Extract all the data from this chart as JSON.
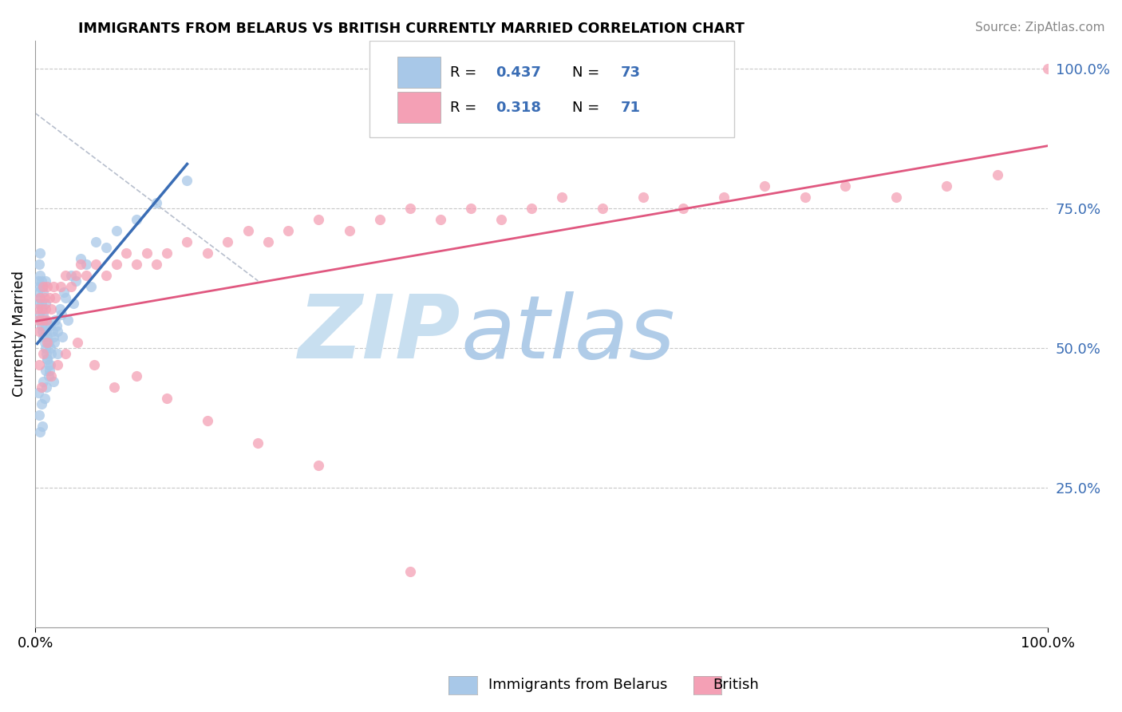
{
  "title": "IMMIGRANTS FROM BELARUS VS BRITISH CURRENTLY MARRIED CORRELATION CHART",
  "source": "Source: ZipAtlas.com",
  "ylabel": "Currently Married",
  "color_blue": "#a8c8e8",
  "color_pink": "#f4a0b5",
  "color_blue_line": "#3a6db5",
  "color_pink_line": "#e05880",
  "color_blue_dark": "#2171b5",
  "watermark_zip": "ZIP",
  "watermark_atlas": "atlas",
  "watermark_color_zip": "#c8dff0",
  "watermark_color_atlas": "#b0cce8",
  "grid_color": "#c8c8c8",
  "background_color": "#ffffff",
  "legend_box_color": "#e8e8e8",
  "R1": "0.437",
  "N1": "73",
  "R2": "0.318",
  "N2": "71",
  "blue_x": [
    0.002,
    0.003,
    0.003,
    0.004,
    0.004,
    0.004,
    0.005,
    0.005,
    0.005,
    0.005,
    0.006,
    0.006,
    0.006,
    0.007,
    0.007,
    0.007,
    0.008,
    0.008,
    0.008,
    0.009,
    0.009,
    0.01,
    0.01,
    0.01,
    0.01,
    0.011,
    0.011,
    0.012,
    0.012,
    0.013,
    0.013,
    0.014,
    0.015,
    0.015,
    0.016,
    0.017,
    0.018,
    0.019,
    0.02,
    0.021,
    0.022,
    0.024,
    0.026,
    0.028,
    0.03,
    0.035,
    0.04,
    0.045,
    0.05,
    0.06,
    0.07,
    0.08,
    0.1,
    0.12,
    0.15,
    0.003,
    0.004,
    0.005,
    0.006,
    0.007,
    0.008,
    0.009,
    0.01,
    0.011,
    0.012,
    0.013,
    0.015,
    0.018,
    0.022,
    0.027,
    0.032,
    0.038,
    0.055
  ],
  "blue_y": [
    0.6,
    0.58,
    0.62,
    0.56,
    0.61,
    0.65,
    0.55,
    0.59,
    0.63,
    0.67,
    0.54,
    0.58,
    0.62,
    0.53,
    0.57,
    0.61,
    0.52,
    0.56,
    0.6,
    0.51,
    0.55,
    0.5,
    0.54,
    0.58,
    0.62,
    0.49,
    0.53,
    0.48,
    0.52,
    0.47,
    0.51,
    0.46,
    0.5,
    0.54,
    0.49,
    0.53,
    0.52,
    0.51,
    0.55,
    0.54,
    0.53,
    0.57,
    0.56,
    0.6,
    0.59,
    0.63,
    0.62,
    0.66,
    0.65,
    0.69,
    0.68,
    0.71,
    0.73,
    0.76,
    0.8,
    0.42,
    0.38,
    0.35,
    0.4,
    0.36,
    0.44,
    0.41,
    0.46,
    0.43,
    0.48,
    0.45,
    0.47,
    0.44,
    0.49,
    0.52,
    0.55,
    0.58,
    0.61
  ],
  "pink_x": [
    0.002,
    0.003,
    0.004,
    0.005,
    0.006,
    0.007,
    0.008,
    0.009,
    0.01,
    0.011,
    0.012,
    0.014,
    0.016,
    0.018,
    0.02,
    0.025,
    0.03,
    0.035,
    0.04,
    0.045,
    0.05,
    0.06,
    0.07,
    0.08,
    0.09,
    0.1,
    0.11,
    0.12,
    0.13,
    0.15,
    0.17,
    0.19,
    0.21,
    0.23,
    0.25,
    0.28,
    0.31,
    0.34,
    0.37,
    0.4,
    0.43,
    0.46,
    0.49,
    0.52,
    0.56,
    0.6,
    0.64,
    0.68,
    0.72,
    0.76,
    0.8,
    0.85,
    0.9,
    0.95,
    1.0,
    0.004,
    0.006,
    0.008,
    0.012,
    0.016,
    0.022,
    0.03,
    0.042,
    0.058,
    0.078,
    0.1,
    0.13,
    0.17,
    0.22,
    0.28,
    0.37
  ],
  "pink_y": [
    0.57,
    0.55,
    0.53,
    0.59,
    0.57,
    0.55,
    0.61,
    0.59,
    0.57,
    0.55,
    0.61,
    0.59,
    0.57,
    0.61,
    0.59,
    0.61,
    0.63,
    0.61,
    0.63,
    0.65,
    0.63,
    0.65,
    0.63,
    0.65,
    0.67,
    0.65,
    0.67,
    0.65,
    0.67,
    0.69,
    0.67,
    0.69,
    0.71,
    0.69,
    0.71,
    0.73,
    0.71,
    0.73,
    0.75,
    0.73,
    0.75,
    0.73,
    0.75,
    0.77,
    0.75,
    0.77,
    0.75,
    0.77,
    0.79,
    0.77,
    0.79,
    0.77,
    0.79,
    0.81,
    1.0,
    0.47,
    0.43,
    0.49,
    0.51,
    0.45,
    0.47,
    0.49,
    0.51,
    0.47,
    0.43,
    0.45,
    0.41,
    0.37,
    0.33,
    0.29,
    0.1
  ]
}
